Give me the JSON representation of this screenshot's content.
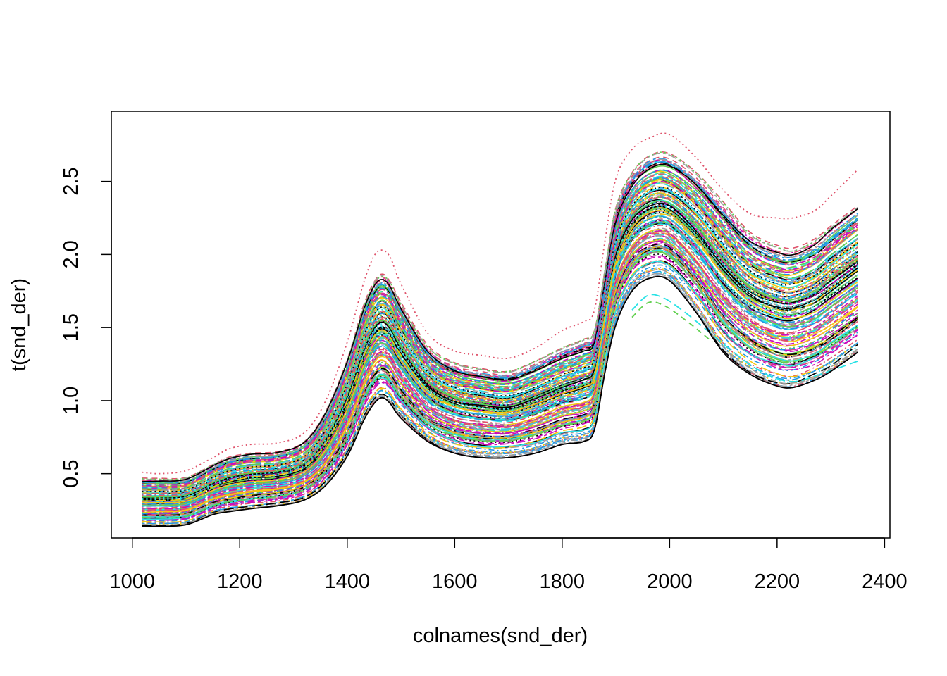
{
  "chart_data": {
    "type": "line",
    "title": "",
    "xlabel": "colnames(snd_der)",
    "ylabel": "t(snd_der)",
    "xlim": [
      961,
      2410
    ],
    "ylim": [
      0.06,
      2.98
    ],
    "x_ticks": [
      1000,
      1200,
      1400,
      1600,
      1800,
      2000,
      2200,
      2400
    ],
    "y_ticks": [
      0.5,
      1.0,
      1.5,
      2.0,
      2.5
    ],
    "x_tick_labels": [
      "1000",
      "1200",
      "1400",
      "1600",
      "1800",
      "2000",
      "2200",
      "2400"
    ],
    "y_tick_labels": [
      "0.5",
      "1.0",
      "1.5",
      "2.0",
      "2.5"
    ],
    "grid": false,
    "legend": "none",
    "line_styles": [
      "solid",
      "dashed",
      "dotted",
      "dotdash",
      "longdash",
      "twodash"
    ],
    "palette": [
      "#000000",
      "#DF536B",
      "#61D04F",
      "#2297E6",
      "#28E2E5",
      "#CD0BBC",
      "#F5C710",
      "#9E9E9E"
    ],
    "x": [
      1018,
      1050,
      1100,
      1150,
      1180,
      1220,
      1270,
      1320,
      1360,
      1400,
      1430,
      1450,
      1465,
      1480,
      1500,
      1550,
      1600,
      1650,
      1700,
      1750,
      1800,
      1840,
      1860,
      1880,
      1900,
      1930,
      1965,
      2000,
      2050,
      2100,
      2150,
      2200,
      2230,
      2270,
      2300,
      2350
    ],
    "series_lower": [
      0.14,
      0.14,
      0.15,
      0.22,
      0.24,
      0.26,
      0.28,
      0.32,
      0.42,
      0.62,
      0.86,
      0.98,
      1.02,
      0.98,
      0.88,
      0.72,
      0.64,
      0.61,
      0.61,
      0.64,
      0.7,
      0.72,
      0.8,
      1.2,
      1.52,
      1.75,
      1.84,
      1.82,
      1.6,
      1.33,
      1.18,
      1.1,
      1.09,
      1.14,
      1.2,
      1.33
    ],
    "series_upper": [
      0.47,
      0.47,
      0.48,
      0.57,
      0.62,
      0.65,
      0.66,
      0.73,
      0.94,
      1.3,
      1.66,
      1.83,
      1.88,
      1.83,
      1.68,
      1.38,
      1.26,
      1.22,
      1.2,
      1.27,
      1.36,
      1.42,
      1.48,
      1.9,
      2.32,
      2.56,
      2.68,
      2.69,
      2.56,
      2.36,
      2.16,
      2.07,
      2.06,
      2.12,
      2.22,
      2.36
    ],
    "outer_envelope_upper": [
      0.51,
      0.5,
      0.52,
      0.61,
      0.67,
      0.7,
      0.71,
      0.78,
      1.0,
      1.4,
      1.8,
      1.99,
      2.03,
      1.98,
      1.8,
      1.46,
      1.34,
      1.31,
      1.29,
      1.36,
      1.48,
      1.54,
      1.62,
      2.1,
      2.52,
      2.72,
      2.8,
      2.82,
      2.66,
      2.44,
      2.28,
      2.25,
      2.25,
      2.3,
      2.4,
      2.58
    ],
    "outlier_low_x": [
      1930,
      1960,
      1990,
      2030,
      2080,
      2130,
      2180,
      2230,
      2280,
      2350
    ],
    "outlier_low_y": [
      1.62,
      1.72,
      1.7,
      1.6,
      1.45,
      1.3,
      1.18,
      1.13,
      1.18,
      1.27
    ],
    "n_series": 180
  }
}
